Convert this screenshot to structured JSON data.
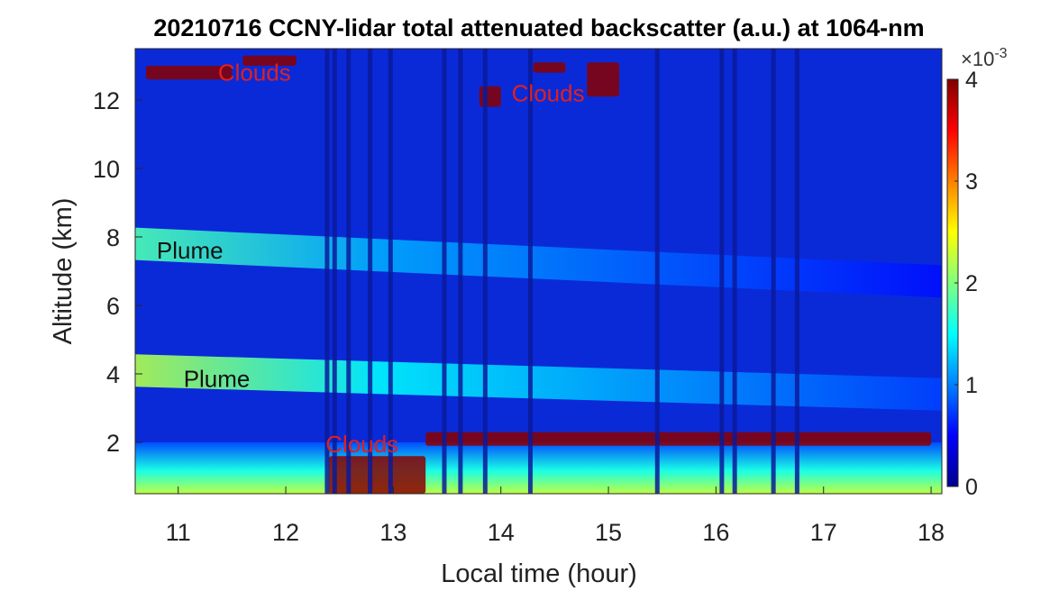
{
  "chart_data": {
    "type": "heatmap",
    "title": "20210716 CCNY-lidar total attenuated backscatter (a.u.) at 1064-nm",
    "xlabel": "Local time (hour)",
    "ylabel": "Altitude (km)",
    "xlim": [
      10.6,
      18.1
    ],
    "ylim": [
      0.5,
      13.5
    ],
    "xticks": [
      11,
      12,
      13,
      14,
      15,
      16,
      17,
      18
    ],
    "yticks": [
      2,
      4,
      6,
      8,
      10,
      12
    ],
    "colorbar": {
      "clim": [
        0,
        4
      ],
      "ticks": [
        0,
        1,
        2,
        3,
        4
      ],
      "multiplier_base": "×10",
      "multiplier_exp": "-3",
      "colormap": "jet"
    },
    "layers": [
      {
        "name": "upper plume",
        "t_start": 10.6,
        "t_end": 18.1,
        "alt_start": 7.8,
        "alt_end": 6.7,
        "value_start": 1.8,
        "value_end": 0.55
      },
      {
        "name": "lower plume",
        "t_start": 10.6,
        "t_end": 18.1,
        "alt_start": 4.1,
        "alt_end": 3.4,
        "value_start": 2.2,
        "value_end": 0.75
      },
      {
        "name": "boundary layer",
        "t_start": 10.6,
        "t_end": 18.1,
        "alt_top": 2.0,
        "value": 1.6
      }
    ],
    "cloud_regions": [
      {
        "t": [
          10.7,
          11.5
        ],
        "alt": [
          12.6,
          13.0
        ]
      },
      {
        "t": [
          11.6,
          12.1
        ],
        "alt": [
          13.0,
          13.3
        ]
      },
      {
        "t": [
          13.8,
          14.0
        ],
        "alt": [
          11.8,
          12.4
        ]
      },
      {
        "t": [
          14.3,
          14.6
        ],
        "alt": [
          12.8,
          13.1
        ]
      },
      {
        "t": [
          14.8,
          15.1
        ],
        "alt": [
          12.1,
          13.1
        ]
      },
      {
        "t": [
          12.4,
          13.3
        ],
        "alt": [
          0.5,
          1.6
        ]
      },
      {
        "t": [
          13.3,
          18.0
        ],
        "alt": [
          1.9,
          2.3
        ]
      }
    ],
    "dropouts": [
      12.38,
      12.45,
      12.58,
      12.78,
      12.97,
      13.47,
      13.62,
      13.85,
      14.27,
      15.45,
      16.05,
      16.17,
      16.53,
      16.75
    ],
    "annotations": [
      {
        "text": "Clouds",
        "t": 11.37,
        "alt": 12.8,
        "color": "#e0201e"
      },
      {
        "text": "Clouds",
        "t": 14.1,
        "alt": 12.2,
        "color": "#e0201e"
      },
      {
        "text": "Plume",
        "t": 10.8,
        "alt": 7.6,
        "color": "#111111"
      },
      {
        "text": "Plume",
        "t": 11.05,
        "alt": 3.85,
        "color": "#111111"
      },
      {
        "text": "Clouds",
        "t": 12.37,
        "alt": 1.95,
        "color": "#e0201e"
      }
    ]
  }
}
